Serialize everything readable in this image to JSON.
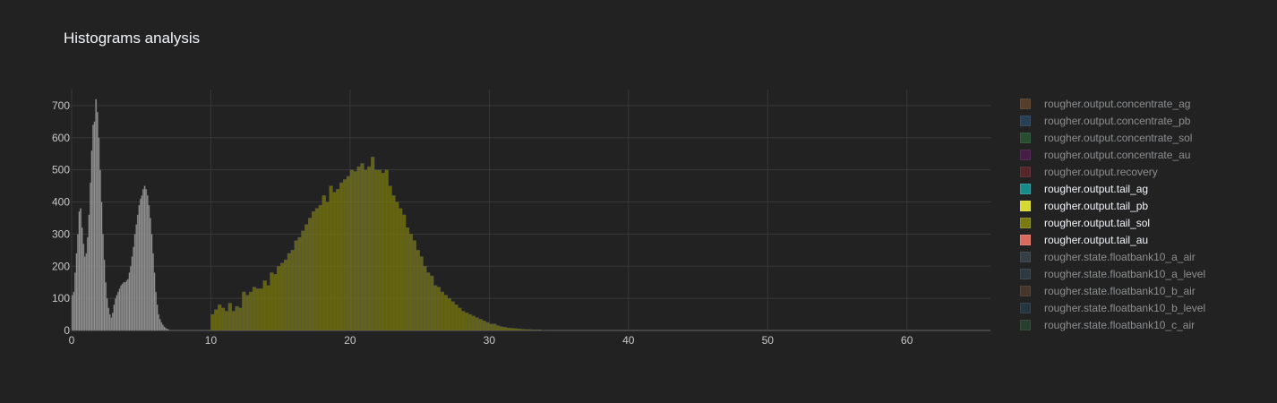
{
  "chart_data": {
    "type": "bar",
    "title": "Histograms analysis",
    "xlabel": "",
    "ylabel": "",
    "xlim": [
      0,
      66
    ],
    "ylim": [
      0,
      750
    ],
    "x_ticks": [
      "0",
      "10",
      "20",
      "30",
      "40",
      "50",
      "60"
    ],
    "y_ticks": [
      "0",
      "100",
      "200",
      "300",
      "400",
      "500",
      "600",
      "700"
    ],
    "grid": true,
    "legend_position": "right",
    "series": [
      {
        "name": "rougher.output.concentrate_ag",
        "color": "#8a5a33",
        "visible": false
      },
      {
        "name": "rougher.output.concentrate_pb",
        "color": "#2b5f8a",
        "visible": false
      },
      {
        "name": "rougher.output.concentrate_sol",
        "color": "#2e7a40",
        "visible": false
      },
      {
        "name": "rougher.output.concentrate_au",
        "color": "#6a1a6a",
        "visible": false
      },
      {
        "name": "rougher.output.recovery",
        "color": "#8a2a35",
        "visible": false
      },
      {
        "name": "rougher.output.tail_ag",
        "color": "#178a8a",
        "visible": true
      },
      {
        "name": "rougher.output.tail_pb",
        "color": "#d8d832",
        "visible": true
      },
      {
        "name": "rougher.output.tail_sol",
        "color": "#7a7a0e",
        "visible": true,
        "bin_start": 10,
        "bin_width": 0.25,
        "values": [
          50,
          65,
          80,
          70,
          60,
          85,
          60,
          75,
          70,
          120,
          110,
          120,
          135,
          130,
          130,
          155,
          140,
          180,
          175,
          200,
          210,
          220,
          240,
          250,
          280,
          290,
          310,
          330,
          350,
          370,
          380,
          390,
          420,
          400,
          450,
          430,
          440,
          460,
          470,
          480,
          500,
          495,
          510,
          520,
          500,
          510,
          540,
          500,
          500,
          490,
          500,
          450,
          420,
          400,
          380,
          360,
          320,
          300,
          280,
          250,
          230,
          200,
          180,
          170,
          140,
          135,
          120,
          110,
          100,
          90,
          80,
          70,
          60,
          55,
          50,
          45,
          40,
          35,
          30,
          25,
          20,
          20,
          15,
          12,
          10,
          8,
          7,
          6,
          5,
          4,
          3,
          3,
          2,
          2,
          2,
          1
        ]
      },
      {
        "name": "rougher.output.tail_au",
        "color": "#d96a5f",
        "visible": true,
        "bin_start": 0,
        "bin_width": 0.1,
        "values": [
          110,
          120,
          180,
          240,
          300,
          370,
          380,
          320,
          270,
          230,
          240,
          290,
          360,
          460,
          560,
          640,
          650,
          720,
          680,
          600,
          500,
          400,
          300,
          220,
          150,
          100,
          70,
          50,
          40,
          55,
          80,
          100,
          110,
          120,
          130,
          140,
          145,
          150,
          150,
          155,
          160,
          180,
          200,
          230,
          260,
          300,
          330,
          360,
          390,
          410,
          420,
          440,
          450,
          440,
          420,
          390,
          350,
          300,
          240,
          180,
          120,
          80,
          50,
          35,
          25,
          18,
          12,
          8,
          5,
          3
        ]
      },
      {
        "name": "rougher.state.floatbank10_a_air",
        "color": "#4a5b6a",
        "visible": false
      },
      {
        "name": "rougher.state.floatbank10_a_level",
        "color": "#3a5060",
        "visible": false
      },
      {
        "name": "rougher.state.floatbank10_b_air",
        "color": "#6a4a30",
        "visible": false
      },
      {
        "name": "rougher.state.floatbank10_b_level",
        "color": "#2b4a60",
        "visible": false
      },
      {
        "name": "rougher.state.floatbank10_c_air",
        "color": "#2e5a3a",
        "visible": false
      }
    ]
  }
}
